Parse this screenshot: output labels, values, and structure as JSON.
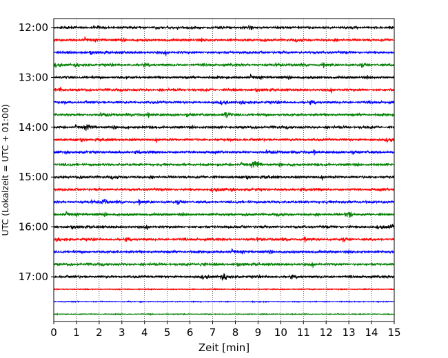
{
  "chart_data": {
    "type": "line",
    "subtype": "seismogram-helicorder",
    "xlabel": "Zeit  [min]",
    "ylabel": "UTC (Lokalzeit = UTC + 01:00)",
    "xlim": [
      0,
      15
    ],
    "x_ticks": [
      "0",
      "1",
      "2",
      "3",
      "4",
      "5",
      "6",
      "7",
      "8",
      "9",
      "10",
      "11",
      "12",
      "13",
      "14",
      "15"
    ],
    "y_tick_labels": [
      "12:00",
      "13:00",
      "14:00",
      "15:00",
      "16:00",
      "17:00"
    ],
    "grid": "vertical-dotted",
    "trace_colors": [
      "#000000",
      "#ff0000",
      "#0000ff",
      "#008000"
    ],
    "traces": [
      {
        "start": "12:00",
        "color": "#000000"
      },
      {
        "start": "12:15",
        "color": "#ff0000"
      },
      {
        "start": "12:30",
        "color": "#0000ff"
      },
      {
        "start": "12:45",
        "color": "#008000"
      },
      {
        "start": "13:00",
        "color": "#000000"
      },
      {
        "start": "13:15",
        "color": "#ff0000"
      },
      {
        "start": "13:30",
        "color": "#0000ff"
      },
      {
        "start": "13:45",
        "color": "#008000"
      },
      {
        "start": "14:00",
        "color": "#000000"
      },
      {
        "start": "14:15",
        "color": "#ff0000"
      },
      {
        "start": "14:30",
        "color": "#0000ff"
      },
      {
        "start": "14:45",
        "color": "#008000"
      },
      {
        "start": "15:00",
        "color": "#000000"
      },
      {
        "start": "15:15",
        "color": "#ff0000"
      },
      {
        "start": "15:30",
        "color": "#0000ff"
      },
      {
        "start": "15:45",
        "color": "#008000"
      },
      {
        "start": "16:00",
        "color": "#000000"
      },
      {
        "start": "16:15",
        "color": "#ff0000"
      },
      {
        "start": "16:30",
        "color": "#0000ff"
      },
      {
        "start": "16:45",
        "color": "#008000"
      },
      {
        "start": "17:00",
        "color": "#000000"
      },
      {
        "start": "17:15",
        "color": "#ff0000"
      },
      {
        "start": "17:30",
        "color": "#0000ff"
      },
      {
        "start": "17:45",
        "color": "#008000"
      }
    ],
    "events": [
      {
        "start": "14:45",
        "x": 8.9,
        "amplitude": 2.2
      },
      {
        "start": "13:45",
        "x": 7.6,
        "amplitude": 1.6
      },
      {
        "start": "15:45",
        "x": 13.0,
        "amplitude": 1.6
      },
      {
        "start": "16:00",
        "x": 15.0,
        "amplitude": 1.4
      },
      {
        "start": "16:45",
        "x": 6.5,
        "amplitude": 1.3
      },
      {
        "start": "17:00",
        "x": 7.5,
        "amplitude": 1.3
      },
      {
        "start": "15:30",
        "x": 2.2,
        "amplitude": 1.2
      },
      {
        "start": "14:00",
        "x": 1.5,
        "amplitude": 1.1
      },
      {
        "start": "13:15",
        "x": 0.3,
        "amplitude": 1.2
      }
    ]
  }
}
